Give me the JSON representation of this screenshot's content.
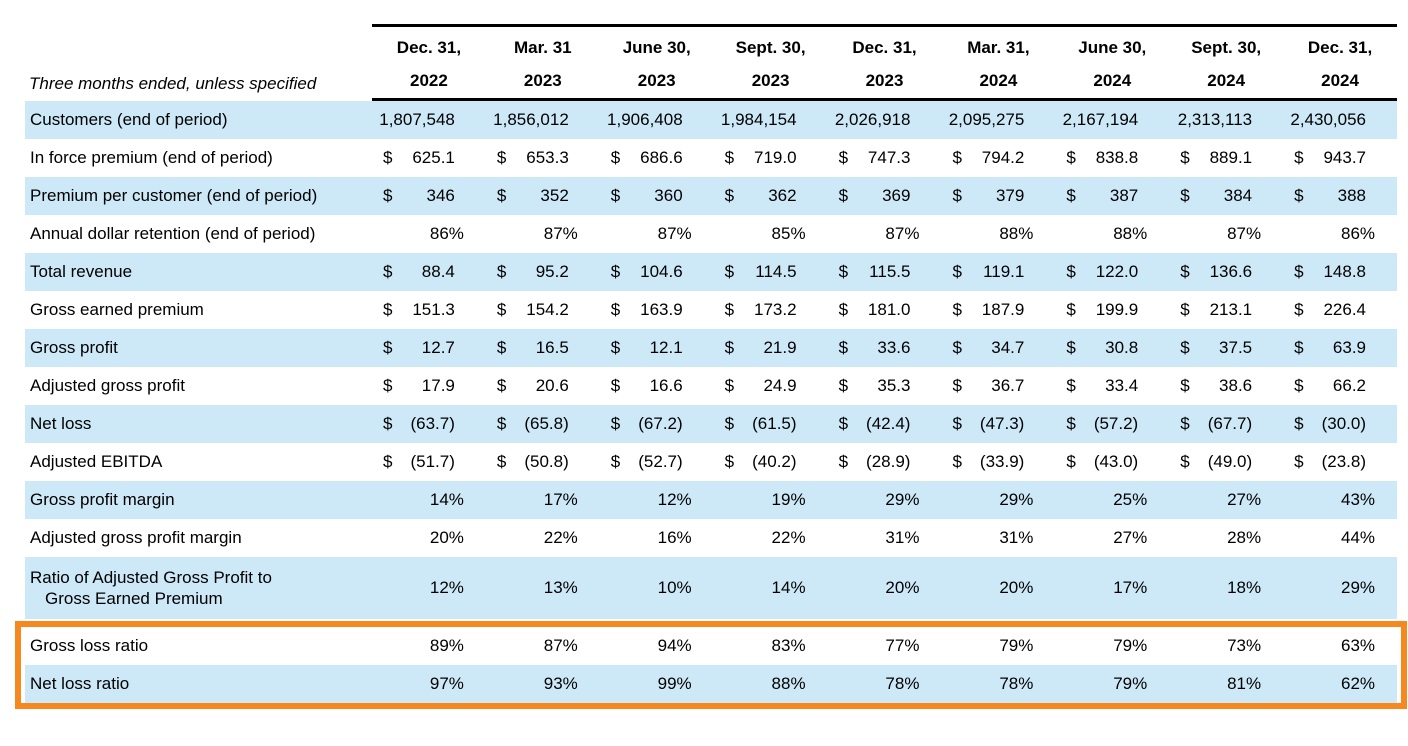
{
  "corner_label": "Three months ended, unless specified",
  "colors": {
    "row_blue": "#CDE9F8",
    "callout_orange": "#F5881E",
    "rule_black": "#000000"
  },
  "columns": [
    {
      "line1": "Dec. 31,",
      "line2": "2022"
    },
    {
      "line1": "Mar. 31",
      "line2": "2023"
    },
    {
      "line1": "June 30,",
      "line2": "2023"
    },
    {
      "line1": "Sept. 30,",
      "line2": "2023"
    },
    {
      "line1": "Dec. 31,",
      "line2": "2023"
    },
    {
      "line1": "Mar. 31,",
      "line2": "2024"
    },
    {
      "line1": "June 30,",
      "line2": "2024"
    },
    {
      "line1": "Sept. 30,",
      "line2": "2024"
    },
    {
      "line1": "Dec. 31,",
      "line2": "2024"
    }
  ],
  "rows": [
    {
      "label": "Customers (end of period)",
      "type": "count",
      "values": [
        "1,807,548",
        "1,856,012",
        "1,906,408",
        "1,984,154",
        "2,026,918",
        "2,095,275",
        "2,167,194",
        "2,313,113",
        "2,430,056"
      ]
    },
    {
      "label": "In force premium (end of period)",
      "type": "money",
      "values": [
        "625.1",
        "653.3",
        "686.6",
        "719.0",
        "747.3",
        "794.2",
        "838.8",
        "889.1",
        "943.7"
      ]
    },
    {
      "label": "Premium per customer (end of period)",
      "type": "money",
      "values": [
        "346",
        "352",
        "360",
        "362",
        "369",
        "379",
        "387",
        "384",
        "388"
      ]
    },
    {
      "label": "Annual dollar retention (end of period)",
      "type": "percent",
      "values": [
        "86%",
        "87%",
        "87%",
        "85%",
        "87%",
        "88%",
        "88%",
        "87%",
        "86%"
      ]
    },
    {
      "label": "Total revenue",
      "type": "money",
      "values": [
        "88.4",
        "95.2",
        "104.6",
        "114.5",
        "115.5",
        "119.1",
        "122.0",
        "136.6",
        "148.8"
      ]
    },
    {
      "label": "Gross earned premium",
      "type": "money",
      "values": [
        "151.3",
        "154.2",
        "163.9",
        "173.2",
        "181.0",
        "187.9",
        "199.9",
        "213.1",
        "226.4"
      ]
    },
    {
      "label": "Gross profit",
      "type": "money",
      "values": [
        "12.7",
        "16.5",
        "12.1",
        "21.9",
        "33.6",
        "34.7",
        "30.8",
        "37.5",
        "63.9"
      ]
    },
    {
      "label": "Adjusted gross profit",
      "type": "money",
      "values": [
        "17.9",
        "20.6",
        "16.6",
        "24.9",
        "35.3",
        "36.7",
        "33.4",
        "38.6",
        "66.2"
      ]
    },
    {
      "label": "Net loss",
      "type": "money",
      "values": [
        "(63.7)",
        "(65.8)",
        "(67.2)",
        "(61.5)",
        "(42.4)",
        "(47.3)",
        "(57.2)",
        "(67.7)",
        "(30.0)"
      ]
    },
    {
      "label": "Adjusted EBITDA",
      "type": "money",
      "values": [
        "(51.7)",
        "(50.8)",
        "(52.7)",
        "(40.2)",
        "(28.9)",
        "(33.9)",
        "(43.0)",
        "(49.0)",
        "(23.8)"
      ]
    },
    {
      "label": "Gross profit margin",
      "type": "percent",
      "values": [
        "14%",
        "17%",
        "12%",
        "19%",
        "29%",
        "29%",
        "25%",
        "27%",
        "43%"
      ]
    },
    {
      "label": "Adjusted gross profit margin",
      "type": "percent",
      "values": [
        "20%",
        "22%",
        "16%",
        "22%",
        "31%",
        "31%",
        "27%",
        "28%",
        "44%"
      ]
    },
    {
      "label": "Ratio of Adjusted Gross Profit to",
      "label2": "Gross Earned Premium",
      "type": "percent",
      "values": [
        "12%",
        "13%",
        "10%",
        "14%",
        "20%",
        "20%",
        "17%",
        "18%",
        "29%"
      ]
    },
    {
      "label": "Gross loss ratio",
      "type": "percent",
      "highlight": true,
      "values": [
        "89%",
        "87%",
        "94%",
        "83%",
        "77%",
        "79%",
        "79%",
        "73%",
        "63%"
      ]
    },
    {
      "label": "Net loss ratio",
      "type": "percent",
      "highlight": true,
      "values": [
        "97%",
        "93%",
        "99%",
        "88%",
        "78%",
        "78%",
        "79%",
        "81%",
        "62%"
      ]
    }
  ],
  "chart_data": {
    "type": "table",
    "title": "Quarterly key operating and financial metrics",
    "categories": [
      "Dec. 31, 2022",
      "Mar. 31 2023",
      "June 30, 2023",
      "Sept. 30, 2023",
      "Dec. 31, 2023",
      "Mar. 31, 2024",
      "June 30, 2024",
      "Sept. 30, 2024",
      "Dec. 31, 2024"
    ],
    "series": [
      {
        "name": "Customers (end of period)",
        "values": [
          1807548,
          1856012,
          1906408,
          1984154,
          2026918,
          2095275,
          2167194,
          2313113,
          2430056
        ]
      },
      {
        "name": "In force premium (end of period) $",
        "values": [
          625.1,
          653.3,
          686.6,
          719.0,
          747.3,
          794.2,
          838.8,
          889.1,
          943.7
        ]
      },
      {
        "name": "Premium per customer (end of period) $",
        "values": [
          346,
          352,
          360,
          362,
          369,
          379,
          387,
          384,
          388
        ]
      },
      {
        "name": "Annual dollar retention (end of period) %",
        "values": [
          86,
          87,
          87,
          85,
          87,
          88,
          88,
          87,
          86
        ]
      },
      {
        "name": "Total revenue $",
        "values": [
          88.4,
          95.2,
          104.6,
          114.5,
          115.5,
          119.1,
          122.0,
          136.6,
          148.8
        ]
      },
      {
        "name": "Gross earned premium $",
        "values": [
          151.3,
          154.2,
          163.9,
          173.2,
          181.0,
          187.9,
          199.9,
          213.1,
          226.4
        ]
      },
      {
        "name": "Gross profit $",
        "values": [
          12.7,
          16.5,
          12.1,
          21.9,
          33.6,
          34.7,
          30.8,
          37.5,
          63.9
        ]
      },
      {
        "name": "Adjusted gross profit $",
        "values": [
          17.9,
          20.6,
          16.6,
          24.9,
          35.3,
          36.7,
          33.4,
          38.6,
          66.2
        ]
      },
      {
        "name": "Net loss $",
        "values": [
          -63.7,
          -65.8,
          -67.2,
          -61.5,
          -42.4,
          -47.3,
          -57.2,
          -67.7,
          -30.0
        ]
      },
      {
        "name": "Adjusted EBITDA $",
        "values": [
          -51.7,
          -50.8,
          -52.7,
          -40.2,
          -28.9,
          -33.9,
          -43.0,
          -49.0,
          -23.8
        ]
      },
      {
        "name": "Gross profit margin %",
        "values": [
          14,
          17,
          12,
          19,
          29,
          29,
          25,
          27,
          43
        ]
      },
      {
        "name": "Adjusted gross profit margin %",
        "values": [
          20,
          22,
          16,
          22,
          31,
          31,
          27,
          28,
          44
        ]
      },
      {
        "name": "Ratio of Adjusted Gross Profit to Gross Earned Premium %",
        "values": [
          12,
          13,
          10,
          14,
          20,
          20,
          17,
          18,
          29
        ]
      },
      {
        "name": "Gross loss ratio %",
        "values": [
          89,
          87,
          94,
          83,
          77,
          79,
          79,
          73,
          63
        ]
      },
      {
        "name": "Net loss ratio %",
        "values": [
          97,
          93,
          99,
          88,
          78,
          78,
          79,
          81,
          62
        ]
      }
    ]
  }
}
